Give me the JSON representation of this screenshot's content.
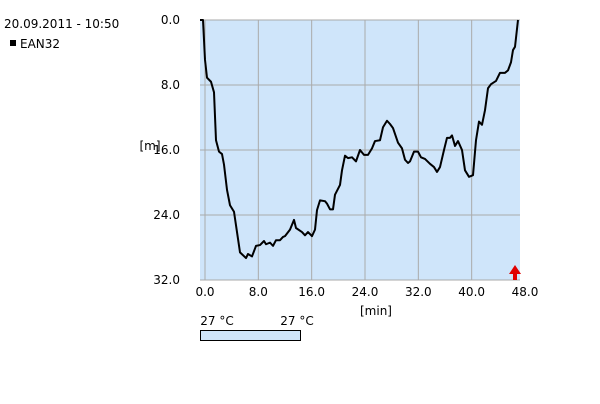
{
  "chart_data": {
    "type": "line",
    "title": "20.09.2011 - 10:50",
    "xlabel": "[min]",
    "ylabel": "[m]",
    "x": [
      -0.75,
      -0.3,
      0,
      0.3,
      0.9,
      1.35,
      1.65,
      2.1,
      2.55,
      2.85,
      3.3,
      3.75,
      4.35,
      4.8,
      5.25,
      6.15,
      6.45,
      7.05,
      7.65,
      8.25,
      8.85,
      9.15,
      9.75,
      10.2,
      10.65,
      11.25,
      11.7,
      12.0,
      12.75,
      13.35,
      13.65,
      14.55,
      15.0,
      15.45,
      16.05,
      16.5,
      16.8,
      17.25,
      18.0,
      18.3,
      18.75,
      19.2,
      19.5,
      20.25,
      20.55,
      21.0,
      21.45,
      22.05,
      22.65,
      23.25,
      23.85,
      24.45,
      25.05,
      25.5,
      26.25,
      26.7,
      27.3,
      27.75,
      28.2,
      28.95,
      29.55,
      30.0,
      30.45,
      30.75,
      31.35,
      31.95,
      32.4,
      33.0,
      33.75,
      34.35,
      34.8,
      35.25,
      35.85,
      36.3,
      36.75,
      37.05,
      37.5,
      37.95,
      38.55,
      39.0,
      39.6,
      40.2,
      40.65,
      41.1,
      41.55,
      42.0,
      42.45,
      42.9,
      43.65,
      44.25,
      45.0,
      45.45,
      45.9,
      46.2,
      46.5,
      46.95
    ],
    "series": [
      {
        "name": "EAN32",
        "color": "#000000",
        "values": [
          0,
          0,
          4.9,
          7.1,
          7.6,
          8.9,
          14.8,
          16.2,
          16.5,
          17.8,
          20.9,
          22.8,
          23.6,
          26.1,
          28.6,
          29.3,
          28.8,
          29.1,
          27.8,
          27.7,
          27.2,
          27.6,
          27.4,
          27.8,
          27.1,
          27.1,
          26.7,
          26.6,
          25.8,
          24.6,
          25.6,
          26.1,
          26.5,
          26.1,
          26.6,
          25.8,
          23.4,
          22.2,
          22.3,
          22.6,
          23.3,
          23.3,
          21.5,
          20.3,
          18.5,
          16.7,
          17.0,
          16.9,
          17.4,
          16.0,
          16.6,
          16.6,
          15.8,
          14.9,
          14.8,
          13.2,
          12.4,
          12.8,
          13.3,
          15.1,
          15.8,
          17.2,
          17.6,
          17.4,
          16.2,
          16.2,
          16.9,
          17.1,
          17.7,
          18.1,
          18.7,
          18.1,
          16.0,
          14.5,
          14.5,
          14.2,
          15.5,
          14.9,
          16.0,
          18.5,
          19.3,
          19.1,
          14.8,
          12.5,
          12.9,
          11.1,
          8.4,
          7.9,
          7.5,
          6.5,
          6.5,
          6.2,
          5.2,
          3.7,
          3.3,
          0
        ]
      }
    ],
    "xlim": [
      -0.75,
      47.25
    ],
    "ylim": [
      0,
      32
    ],
    "y_inverted": true,
    "xticks": [
      {
        "value": 0,
        "label": "0.0"
      },
      {
        "value": 8,
        "label": "8.0"
      },
      {
        "value": 16,
        "label": "16.0"
      },
      {
        "value": 24,
        "label": "24.0"
      },
      {
        "value": 32,
        "label": "32.0"
      },
      {
        "value": 40,
        "label": "40.0"
      },
      {
        "value": 48,
        "label": "48.0"
      }
    ],
    "yticks": [
      {
        "value": 0,
        "label": "0.0"
      },
      {
        "value": 8,
        "label": "8.0"
      },
      {
        "value": 16,
        "label": "16.0"
      },
      {
        "value": 24,
        "label": "24.0"
      },
      {
        "value": 32,
        "label": "32.0"
      }
    ],
    "grid": true,
    "temperature": {
      "start_label": "27 °C",
      "end_label": "27 °C"
    }
  }
}
